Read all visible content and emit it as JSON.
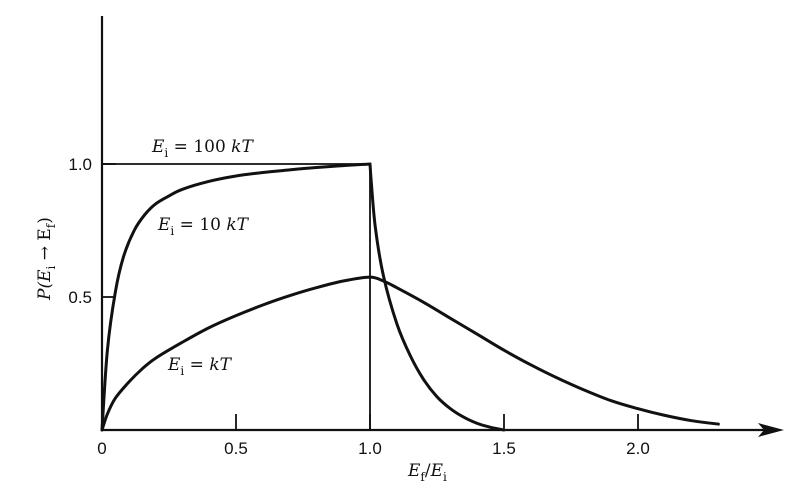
{
  "chart_data": {
    "type": "line",
    "xlabel": {
      "main": "E",
      "sub": "f",
      "slash": "/",
      "main2": "E",
      "sub2": "i"
    },
    "ylabel": {
      "p": "P(E",
      "sub1": "i",
      "arrow": " → E",
      "sub2": "f",
      "close": ")"
    },
    "xlim": [
      0,
      2.5
    ],
    "ylim": [
      0,
      1.6
    ],
    "x_ticks": [
      {
        "value": 0,
        "label": "0"
      },
      {
        "value": 0.5,
        "label": "0.5"
      },
      {
        "value": 1.0,
        "label": "1.0"
      },
      {
        "value": 1.5,
        "label": "1.5"
      },
      {
        "value": 2.0,
        "label": "2.0"
      }
    ],
    "y_ticks": [
      {
        "value": 0.5,
        "label": "0.5"
      },
      {
        "value": 1.0,
        "label": "1.0"
      }
    ],
    "series": [
      {
        "label": {
          "main": "E",
          "sub": "i",
          "rest": " = 100 ",
          "unit": "kT"
        },
        "style": "thin",
        "x": [
          0,
          0,
          1.0,
          1.0
        ],
        "y": [
          0,
          1.0,
          1.0,
          0
        ]
      },
      {
        "label": {
          "main": "E",
          "sub": "i",
          "rest": " = 10 ",
          "unit": "kT"
        },
        "style": "thick",
        "x": [
          0,
          0.02,
          0.05,
          0.08,
          0.12,
          0.16,
          0.2,
          0.25,
          0.3,
          0.4,
          0.5,
          0.6,
          0.7,
          0.8,
          0.9,
          1.0,
          1.005,
          1.02,
          1.05,
          1.1,
          1.15,
          1.2,
          1.25,
          1.3,
          1.35,
          1.4,
          1.45,
          1.5
        ],
        "y": [
          0,
          0.3,
          0.52,
          0.65,
          0.75,
          0.81,
          0.85,
          0.88,
          0.905,
          0.935,
          0.955,
          0.968,
          0.978,
          0.987,
          0.994,
          1.0,
          0.93,
          0.76,
          0.58,
          0.4,
          0.28,
          0.19,
          0.125,
          0.08,
          0.048,
          0.025,
          0.01,
          0
        ]
      },
      {
        "label": {
          "main": "E",
          "sub": "i",
          "rest": " = ",
          "unit": "kT"
        },
        "style": "thick",
        "x": [
          0,
          0.02,
          0.05,
          0.1,
          0.15,
          0.2,
          0.3,
          0.4,
          0.5,
          0.6,
          0.7,
          0.8,
          0.9,
          1.0,
          1.05,
          1.1,
          1.2,
          1.3,
          1.4,
          1.5,
          1.6,
          1.7,
          1.8,
          1.9,
          2.0,
          2.1,
          2.2,
          2.3
        ],
        "y": [
          0,
          0.06,
          0.12,
          0.18,
          0.23,
          0.27,
          0.33,
          0.385,
          0.43,
          0.47,
          0.505,
          0.535,
          0.56,
          0.575,
          0.56,
          0.535,
          0.48,
          0.42,
          0.36,
          0.3,
          0.245,
          0.195,
          0.15,
          0.11,
          0.08,
          0.055,
          0.035,
          0.022
        ]
      }
    ]
  }
}
